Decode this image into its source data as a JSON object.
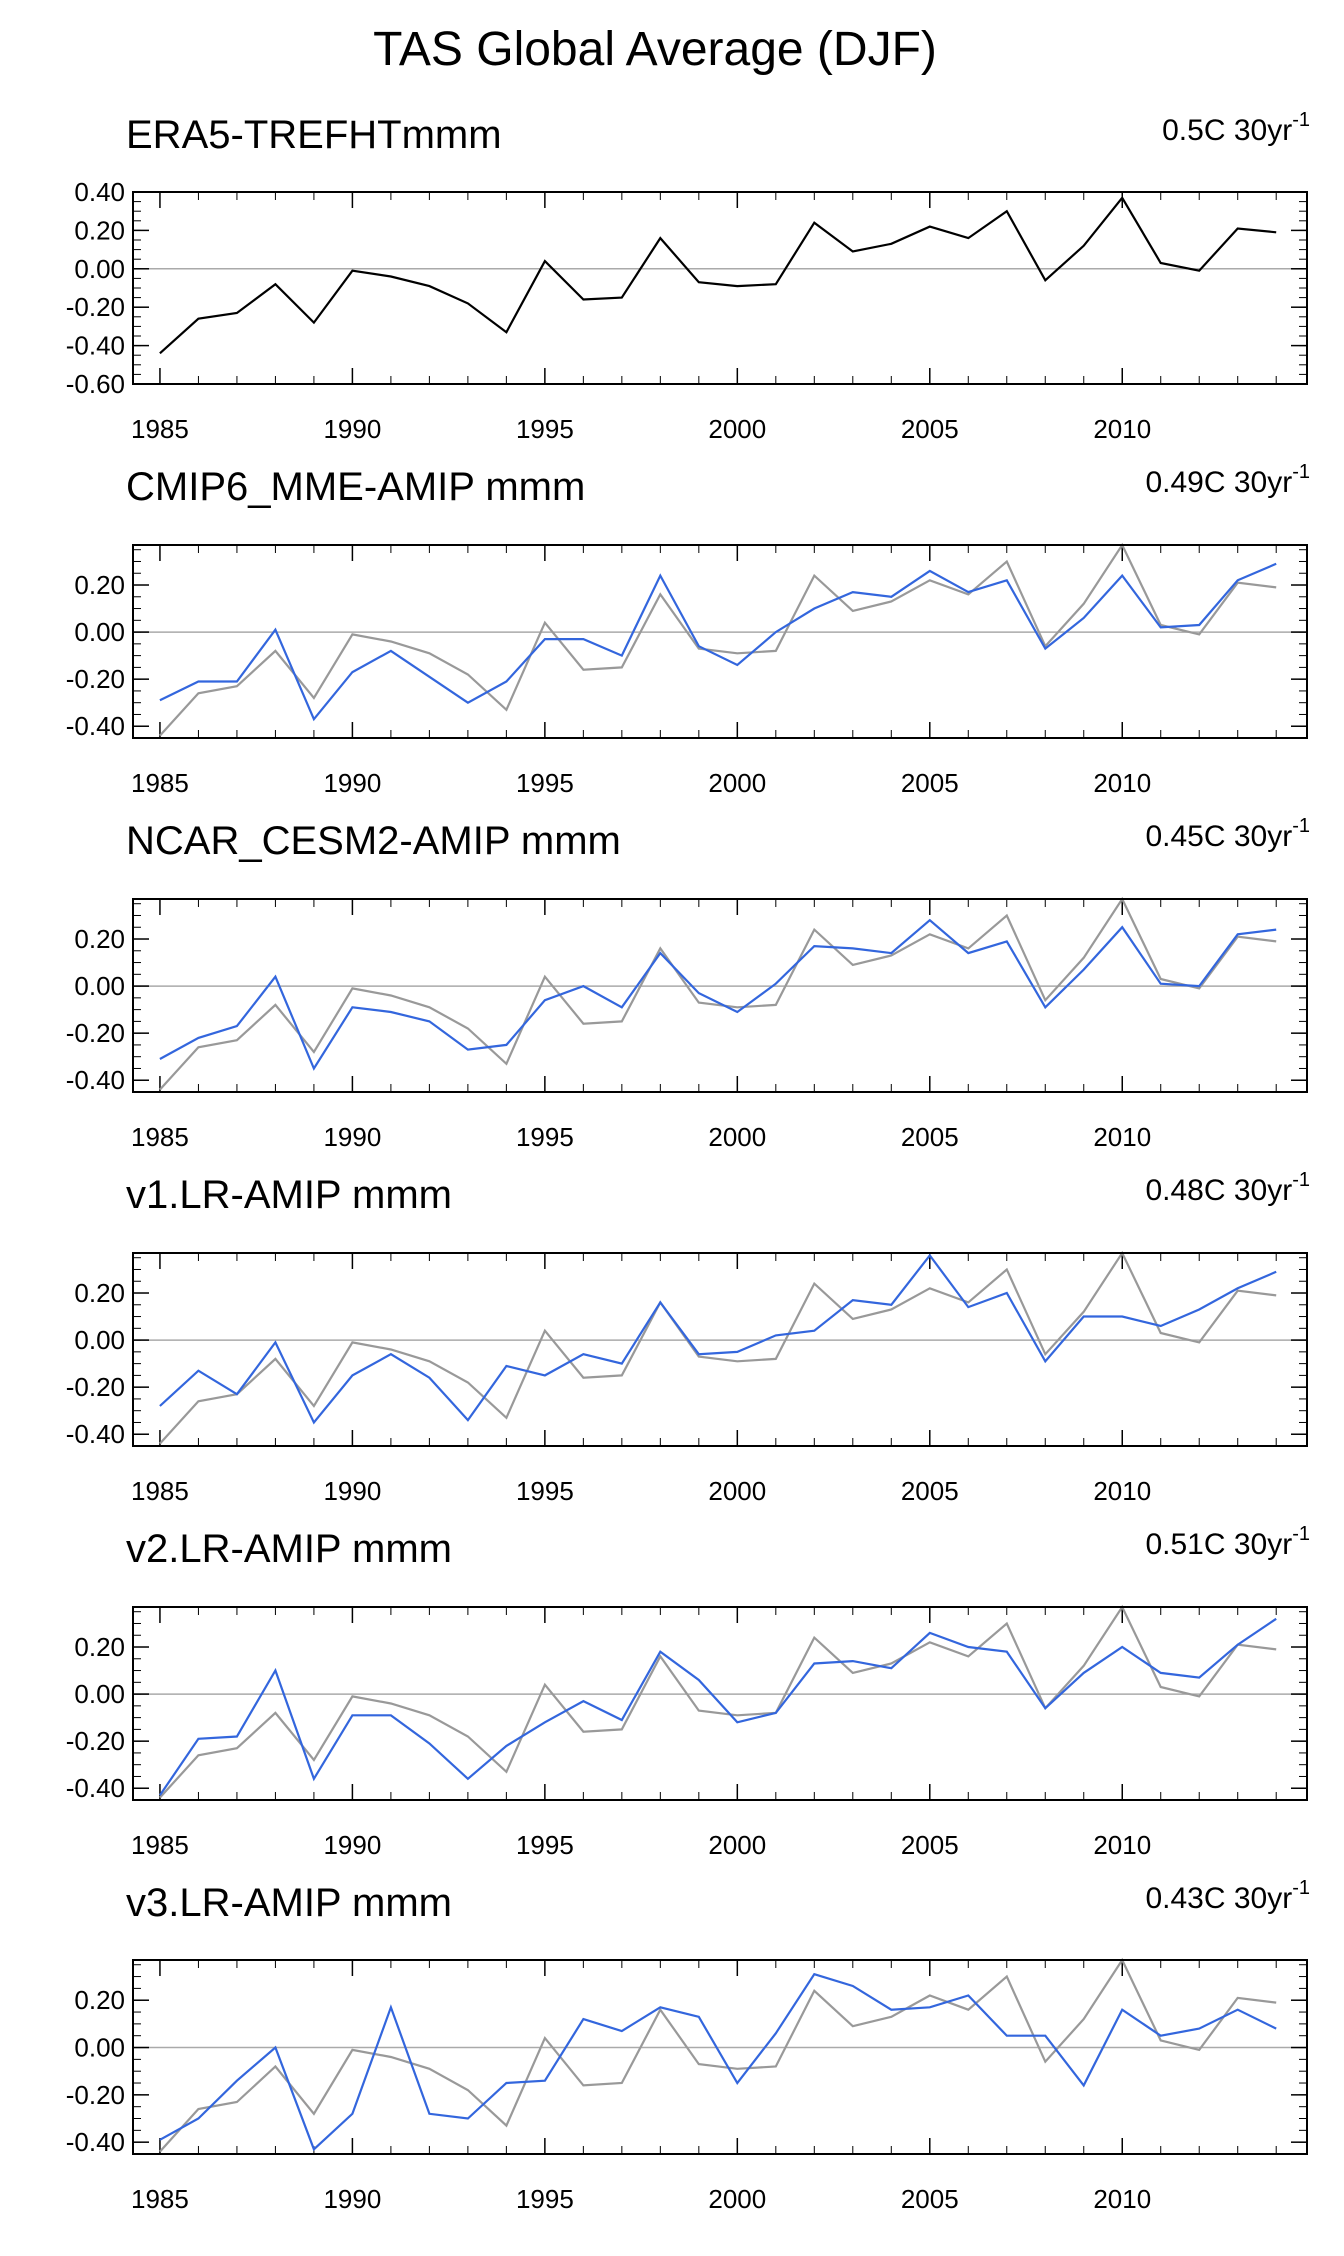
{
  "figure_title": "TAS Global Average (DJF)",
  "chart_data": [
    {
      "type": "line",
      "title": "ERA5-TREFHTmmm",
      "trend_label": "0.5C 30yr",
      "trend_superscript": "-1",
      "xlim": [
        1985,
        2014
      ],
      "ylim": [
        -0.6,
        0.4
      ],
      "yticks": [
        -0.6,
        -0.4,
        -0.2,
        0.0,
        0.2,
        0.4
      ],
      "ytick_labels": [
        "-0.60",
        "-0.40",
        "-0.20",
        "0.00",
        "0.20",
        "0.40"
      ],
      "xticks": [
        1985,
        1990,
        1995,
        2000,
        2005,
        2010
      ],
      "x": [
        1985,
        1986,
        1987,
        1988,
        1989,
        1990,
        1991,
        1992,
        1993,
        1994,
        1995,
        1996,
        1997,
        1998,
        1999,
        2000,
        2001,
        2002,
        2003,
        2004,
        2005,
        2006,
        2007,
        2008,
        2009,
        2010,
        2011,
        2012,
        2013,
        2014
      ],
      "series": [
        {
          "color": "#000000",
          "values": [
            -0.44,
            -0.26,
            -0.23,
            -0.08,
            -0.28,
            -0.01,
            -0.04,
            -0.09,
            -0.18,
            -0.33,
            0.04,
            -0.16,
            -0.15,
            0.16,
            -0.07,
            -0.09,
            -0.08,
            0.24,
            0.09,
            0.13,
            0.22,
            0.16,
            0.3,
            -0.06,
            0.12,
            0.37,
            0.03,
            -0.01,
            0.21,
            0.19
          ]
        }
      ]
    },
    {
      "type": "line",
      "title": "CMIP6_MME-AMIP  mmm",
      "trend_label": "0.49C 30yr",
      "trend_superscript": "-1",
      "xlim": [
        1985,
        2014
      ],
      "ylim": [
        -0.45,
        0.37
      ],
      "yticks": [
        -0.4,
        -0.2,
        0.0,
        0.2
      ],
      "ytick_labels": [
        "-0.40",
        "-0.20",
        "0.00",
        "0.20"
      ],
      "xticks": [
        1985,
        1990,
        1995,
        2000,
        2005,
        2010
      ],
      "x": [
        1985,
        1986,
        1987,
        1988,
        1989,
        1990,
        1991,
        1992,
        1993,
        1994,
        1995,
        1996,
        1997,
        1998,
        1999,
        2000,
        2001,
        2002,
        2003,
        2004,
        2005,
        2006,
        2007,
        2008,
        2009,
        2010,
        2011,
        2012,
        2013,
        2014
      ],
      "series": [
        {
          "color": "#999999",
          "values": [
            -0.44,
            -0.26,
            -0.23,
            -0.08,
            -0.28,
            -0.01,
            -0.04,
            -0.09,
            -0.18,
            -0.33,
            0.04,
            -0.16,
            -0.15,
            0.16,
            -0.07,
            -0.09,
            -0.08,
            0.24,
            0.09,
            0.13,
            0.22,
            0.16,
            0.3,
            -0.06,
            0.12,
            0.37,
            0.03,
            -0.01,
            0.21,
            0.19
          ]
        },
        {
          "color": "#3366dd",
          "values": [
            -0.29,
            -0.21,
            -0.21,
            0.01,
            -0.37,
            -0.17,
            -0.08,
            -0.19,
            -0.3,
            -0.21,
            -0.03,
            -0.03,
            -0.1,
            0.24,
            -0.06,
            -0.14,
            0.0,
            0.1,
            0.17,
            0.15,
            0.26,
            0.17,
            0.22,
            -0.07,
            0.06,
            0.24,
            0.02,
            0.03,
            0.22,
            0.29
          ]
        }
      ]
    },
    {
      "type": "line",
      "title": "NCAR_CESM2-AMIP  mmm",
      "trend_label": "0.45C 30yr",
      "trend_superscript": "-1",
      "xlim": [
        1985,
        2014
      ],
      "ylim": [
        -0.45,
        0.37
      ],
      "yticks": [
        -0.4,
        -0.2,
        0.0,
        0.2
      ],
      "ytick_labels": [
        "-0.40",
        "-0.20",
        "0.00",
        "0.20"
      ],
      "xticks": [
        1985,
        1990,
        1995,
        2000,
        2005,
        2010
      ],
      "x": [
        1985,
        1986,
        1987,
        1988,
        1989,
        1990,
        1991,
        1992,
        1993,
        1994,
        1995,
        1996,
        1997,
        1998,
        1999,
        2000,
        2001,
        2002,
        2003,
        2004,
        2005,
        2006,
        2007,
        2008,
        2009,
        2010,
        2011,
        2012,
        2013,
        2014
      ],
      "series": [
        {
          "color": "#999999",
          "values": [
            -0.44,
            -0.26,
            -0.23,
            -0.08,
            -0.28,
            -0.01,
            -0.04,
            -0.09,
            -0.18,
            -0.33,
            0.04,
            -0.16,
            -0.15,
            0.16,
            -0.07,
            -0.09,
            -0.08,
            0.24,
            0.09,
            0.13,
            0.22,
            0.16,
            0.3,
            -0.06,
            0.12,
            0.37,
            0.03,
            -0.01,
            0.21,
            0.19
          ]
        },
        {
          "color": "#3366dd",
          "values": [
            -0.31,
            -0.22,
            -0.17,
            0.04,
            -0.35,
            -0.09,
            -0.11,
            -0.15,
            -0.27,
            -0.25,
            -0.06,
            0.0,
            -0.09,
            0.14,
            -0.03,
            -0.11,
            0.01,
            0.17,
            0.16,
            0.14,
            0.28,
            0.14,
            0.19,
            -0.09,
            0.07,
            0.25,
            0.01,
            0.0,
            0.22,
            0.24
          ]
        }
      ]
    },
    {
      "type": "line",
      "title": "v1.LR-AMIP  mmm",
      "trend_label": "0.48C 30yr",
      "trend_superscript": "-1",
      "xlim": [
        1985,
        2014
      ],
      "ylim": [
        -0.45,
        0.37
      ],
      "yticks": [
        -0.4,
        -0.2,
        0.0,
        0.2
      ],
      "ytick_labels": [
        "-0.40",
        "-0.20",
        "0.00",
        "0.20"
      ],
      "xticks": [
        1985,
        1990,
        1995,
        2000,
        2005,
        2010
      ],
      "x": [
        1985,
        1986,
        1987,
        1988,
        1989,
        1990,
        1991,
        1992,
        1993,
        1994,
        1995,
        1996,
        1997,
        1998,
        1999,
        2000,
        2001,
        2002,
        2003,
        2004,
        2005,
        2006,
        2007,
        2008,
        2009,
        2010,
        2011,
        2012,
        2013,
        2014
      ],
      "series": [
        {
          "color": "#999999",
          "values": [
            -0.44,
            -0.26,
            -0.23,
            -0.08,
            -0.28,
            -0.01,
            -0.04,
            -0.09,
            -0.18,
            -0.33,
            0.04,
            -0.16,
            -0.15,
            0.16,
            -0.07,
            -0.09,
            -0.08,
            0.24,
            0.09,
            0.13,
            0.22,
            0.16,
            0.3,
            -0.06,
            0.12,
            0.37,
            0.03,
            -0.01,
            0.21,
            0.19
          ]
        },
        {
          "color": "#3366dd",
          "values": [
            -0.28,
            -0.13,
            -0.23,
            -0.01,
            -0.35,
            -0.15,
            -0.06,
            -0.16,
            -0.34,
            -0.11,
            -0.15,
            -0.06,
            -0.1,
            0.16,
            -0.06,
            -0.05,
            0.02,
            0.04,
            0.17,
            0.15,
            0.36,
            0.14,
            0.2,
            -0.09,
            0.1,
            0.1,
            0.06,
            0.13,
            0.22,
            0.29
          ]
        }
      ]
    },
    {
      "type": "line",
      "title": "v2.LR-AMIP  mmm",
      "trend_label": "0.51C 30yr",
      "trend_superscript": "-1",
      "xlim": [
        1985,
        2014
      ],
      "ylim": [
        -0.45,
        0.37
      ],
      "yticks": [
        -0.4,
        -0.2,
        0.0,
        0.2
      ],
      "ytick_labels": [
        "-0.40",
        "-0.20",
        "0.00",
        "0.20"
      ],
      "xticks": [
        1985,
        1990,
        1995,
        2000,
        2005,
        2010
      ],
      "x": [
        1985,
        1986,
        1987,
        1988,
        1989,
        1990,
        1991,
        1992,
        1993,
        1994,
        1995,
        1996,
        1997,
        1998,
        1999,
        2000,
        2001,
        2002,
        2003,
        2004,
        2005,
        2006,
        2007,
        2008,
        2009,
        2010,
        2011,
        2012,
        2013,
        2014
      ],
      "series": [
        {
          "color": "#999999",
          "values": [
            -0.44,
            -0.26,
            -0.23,
            -0.08,
            -0.28,
            -0.01,
            -0.04,
            -0.09,
            -0.18,
            -0.33,
            0.04,
            -0.16,
            -0.15,
            0.16,
            -0.07,
            -0.09,
            -0.08,
            0.24,
            0.09,
            0.13,
            0.22,
            0.16,
            0.3,
            -0.06,
            0.12,
            0.37,
            0.03,
            -0.01,
            0.21,
            0.19
          ]
        },
        {
          "color": "#3366dd",
          "values": [
            -0.43,
            -0.19,
            -0.18,
            0.1,
            -0.36,
            -0.09,
            -0.09,
            -0.21,
            -0.36,
            -0.22,
            -0.12,
            -0.03,
            -0.11,
            0.18,
            0.06,
            -0.12,
            -0.08,
            0.13,
            0.14,
            0.11,
            0.26,
            0.2,
            0.18,
            -0.06,
            0.09,
            0.2,
            0.09,
            0.07,
            0.21,
            0.32
          ]
        }
      ]
    },
    {
      "type": "line",
      "title": "v3.LR-AMIP  mmm",
      "trend_label": "0.43C 30yr",
      "trend_superscript": "-1",
      "xlim": [
        1985,
        2014
      ],
      "ylim": [
        -0.45,
        0.37
      ],
      "yticks": [
        -0.4,
        -0.2,
        0.0,
        0.2
      ],
      "ytick_labels": [
        "-0.40",
        "-0.20",
        "0.00",
        "0.20"
      ],
      "xticks": [
        1985,
        1990,
        1995,
        2000,
        2005,
        2010
      ],
      "x": [
        1985,
        1986,
        1987,
        1988,
        1989,
        1990,
        1991,
        1992,
        1993,
        1994,
        1995,
        1996,
        1997,
        1998,
        1999,
        2000,
        2001,
        2002,
        2003,
        2004,
        2005,
        2006,
        2007,
        2008,
        2009,
        2010,
        2011,
        2012,
        2013,
        2014
      ],
      "series": [
        {
          "color": "#999999",
          "values": [
            -0.44,
            -0.26,
            -0.23,
            -0.08,
            -0.28,
            -0.01,
            -0.04,
            -0.09,
            -0.18,
            -0.33,
            0.04,
            -0.16,
            -0.15,
            0.16,
            -0.07,
            -0.09,
            -0.08,
            0.24,
            0.09,
            0.13,
            0.22,
            0.16,
            0.3,
            -0.06,
            0.12,
            0.37,
            0.03,
            -0.01,
            0.21,
            0.19
          ]
        },
        {
          "color": "#3366dd",
          "values": [
            -0.39,
            -0.3,
            -0.14,
            0.0,
            -0.43,
            -0.28,
            0.17,
            -0.28,
            -0.3,
            -0.15,
            -0.14,
            0.12,
            0.07,
            0.17,
            0.13,
            -0.15,
            0.06,
            0.31,
            0.26,
            0.16,
            0.17,
            0.22,
            0.05,
            0.05,
            -0.16,
            0.16,
            0.05,
            0.08,
            0.16,
            0.08
          ]
        }
      ]
    }
  ]
}
